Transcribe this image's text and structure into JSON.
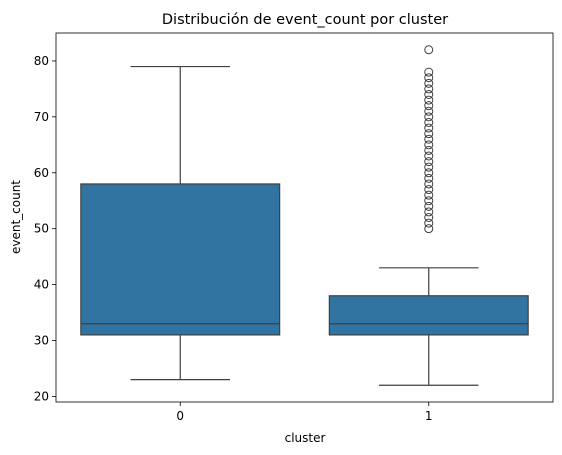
{
  "chart_data": {
    "type": "box",
    "title": "Distribución de event_count por cluster",
    "xlabel": "cluster",
    "ylabel": "event_count",
    "categories": [
      "0",
      "1"
    ],
    "ylim": [
      19,
      85
    ],
    "yticks": [
      20,
      30,
      40,
      50,
      60,
      70,
      80
    ],
    "grid": false,
    "box_color": "#3274a1",
    "line_color": "#3f3f3f",
    "boxes": [
      {
        "category": "0",
        "whisker_low": 23,
        "q1": 31,
        "median": 33,
        "q3": 58,
        "whisker_high": 79,
        "outliers": []
      },
      {
        "category": "1",
        "whisker_low": 22,
        "q1": 31,
        "median": 33,
        "q3": 38,
        "whisker_high": 43,
        "outliers": [
          50,
          51,
          52,
          53,
          54,
          55,
          56,
          57,
          58,
          59,
          60,
          61,
          62,
          63,
          64,
          65,
          66,
          67,
          68,
          69,
          70,
          71,
          72,
          73,
          74,
          75,
          76,
          77,
          78,
          82
        ]
      }
    ]
  }
}
